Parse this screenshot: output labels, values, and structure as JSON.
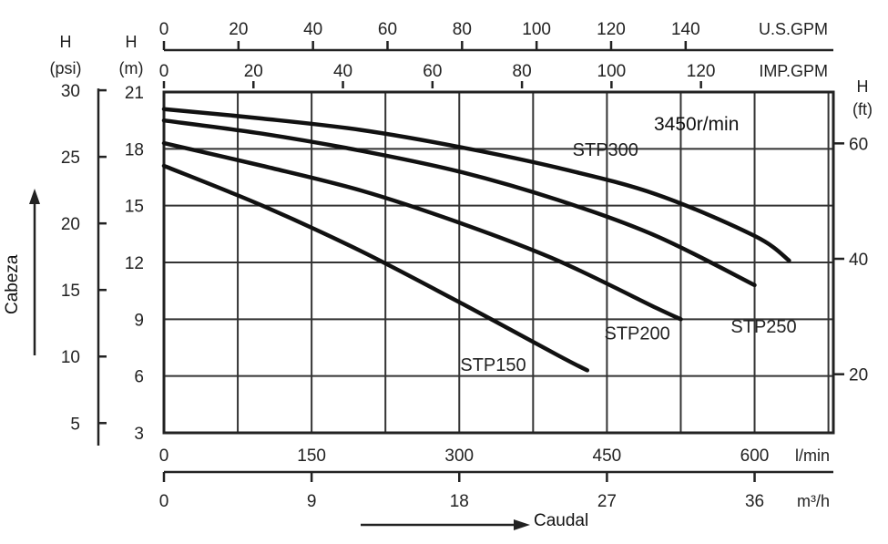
{
  "chart_data": {
    "type": "line",
    "annotation": "3450r/min",
    "x_axis_word": "Caudal",
    "y_axis_word": "Cabeza",
    "x_primary": {
      "unit": "l/min",
      "ticks": [
        "0",
        "150",
        "300",
        "450",
        "600"
      ],
      "range": [
        0,
        680
      ]
    },
    "x_m3h": {
      "unit": "m³/h",
      "ticks": [
        "0",
        "9",
        "18",
        "27",
        "36"
      ]
    },
    "x_usgpm": {
      "unit": "U.S.GPM",
      "ticks": [
        "0",
        "20",
        "40",
        "60",
        "80",
        "100",
        "120",
        "140"
      ]
    },
    "x_impgpm": {
      "unit": "IMP.GPM",
      "ticks": [
        "0",
        "20",
        "40",
        "60",
        "80",
        "100",
        "120"
      ]
    },
    "y_m": {
      "label_top": "H",
      "label_unit": "(m)",
      "ticks": [
        "3",
        "6",
        "9",
        "12",
        "15",
        "18",
        "21"
      ],
      "range": [
        3,
        21
      ]
    },
    "y_psi": {
      "label_top": "H",
      "label_unit": "(psi)",
      "ticks": [
        "5",
        "10",
        "15",
        "20",
        "25",
        "30"
      ]
    },
    "y_ft": {
      "label_top": "H",
      "label_unit": "(ft)",
      "ticks": [
        "20",
        "40",
        "60"
      ]
    },
    "series": [
      {
        "name": "STP150",
        "x": [
          0,
          100,
          200,
          300,
          400,
          430
        ],
        "y": [
          17.1,
          15.0,
          12.6,
          9.9,
          7.1,
          6.3
        ]
      },
      {
        "name": "STP200",
        "x": [
          0,
          100,
          200,
          300,
          400,
          500,
          525
        ],
        "y": [
          18.3,
          17.1,
          15.8,
          14.1,
          12.1,
          9.6,
          9.0
        ]
      },
      {
        "name": "STP250",
        "x": [
          0,
          100,
          200,
          300,
          400,
          500,
          600
        ],
        "y": [
          19.5,
          18.8,
          17.9,
          16.8,
          15.3,
          13.4,
          10.8
        ]
      },
      {
        "name": "STP300",
        "x": [
          0,
          100,
          200,
          300,
          400,
          500,
          600,
          635
        ],
        "y": [
          20.1,
          19.6,
          19.0,
          18.1,
          17.0,
          15.6,
          13.4,
          12.1
        ]
      }
    ],
    "series_label_anchor_x": [
      340,
      490,
      600,
      430
    ],
    "grid": true
  }
}
